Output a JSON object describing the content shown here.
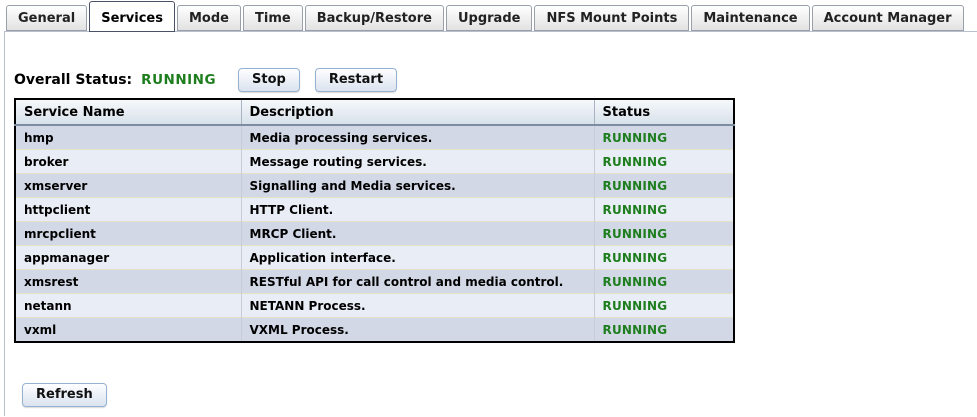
{
  "tabs": [
    {
      "label": "General",
      "active": false
    },
    {
      "label": "Services",
      "active": true
    },
    {
      "label": "Mode",
      "active": false
    },
    {
      "label": "Time",
      "active": false
    },
    {
      "label": "Backup/Restore",
      "active": false
    },
    {
      "label": "Upgrade",
      "active": false
    },
    {
      "label": "NFS Mount Points",
      "active": false
    },
    {
      "label": "Maintenance",
      "active": false
    },
    {
      "label": "Account Manager",
      "active": false
    }
  ],
  "overall_status": {
    "label": "Overall Status:",
    "value": "RUNNING",
    "buttons": {
      "stop": "Stop",
      "restart": "Restart"
    }
  },
  "services_table": {
    "headers": {
      "name": "Service Name",
      "description": "Description",
      "status": "Status"
    },
    "rows": [
      {
        "name": "hmp",
        "description": "Media processing services.",
        "status": "RUNNING"
      },
      {
        "name": "broker",
        "description": "Message routing services.",
        "status": "RUNNING"
      },
      {
        "name": "xmserver",
        "description": "Signalling and Media services.",
        "status": "RUNNING"
      },
      {
        "name": "httpclient",
        "description": "HTTP Client.",
        "status": "RUNNING"
      },
      {
        "name": "mrcpclient",
        "description": "MRCP Client.",
        "status": "RUNNING"
      },
      {
        "name": "appmanager",
        "description": "Application interface.",
        "status": "RUNNING"
      },
      {
        "name": "xmsrest",
        "description": "RESTful API for call control and media control.",
        "status": "RUNNING"
      },
      {
        "name": "netann",
        "description": "NETANN Process.",
        "status": "RUNNING"
      },
      {
        "name": "vxml",
        "description": "VXML Process.",
        "status": "RUNNING"
      }
    ]
  },
  "refresh_button": {
    "label": "Refresh"
  },
  "colors": {
    "running_green": "#1e7e1e",
    "row_odd": "#d2d8e6",
    "row_even": "#e9edf5",
    "header_grad_top": "#f5f9fb",
    "header_grad_bottom": "#d8e1ea"
  }
}
